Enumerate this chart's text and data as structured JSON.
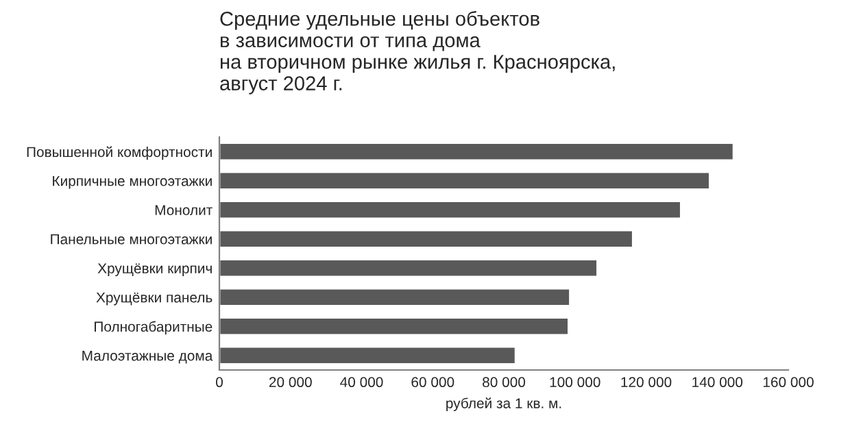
{
  "chart_data": {
    "type": "bar",
    "orientation": "horizontal",
    "title": "Средние удельные цены объектов\nв зависимости от типа дома\nна вторичном рынке жилья г. Красноярска,\nавгуст 2024 г.",
    "xlabel": "рублей за 1 кв. м.",
    "categories": [
      "Повышенной комфортности",
      "Кирпичные многоэтажки",
      "Монолит",
      "Панельные многоэтажки",
      "Хрущёвки кирпич",
      "Хрущёвки панель",
      "Полногабаритные",
      "Малоэтажные дома"
    ],
    "values": [
      144600,
      137900,
      129800,
      116300,
      106300,
      98600,
      98200,
      83300
    ],
    "color": "#595959",
    "xlim": [
      0,
      160000
    ],
    "xticks": [
      {
        "value": 0,
        "label": "0"
      },
      {
        "value": 20000,
        "label": "20 000"
      },
      {
        "value": 40000,
        "label": "40 000"
      },
      {
        "value": 60000,
        "label": "60 000"
      },
      {
        "value": 80000,
        "label": "80 000"
      },
      {
        "value": 100000,
        "label": "100 000"
      },
      {
        "value": 120000,
        "label": "120 000"
      },
      {
        "value": 140000,
        "label": "140 000"
      },
      {
        "value": 160000,
        "label": "160 000"
      }
    ],
    "grid": false,
    "legend": false
  }
}
